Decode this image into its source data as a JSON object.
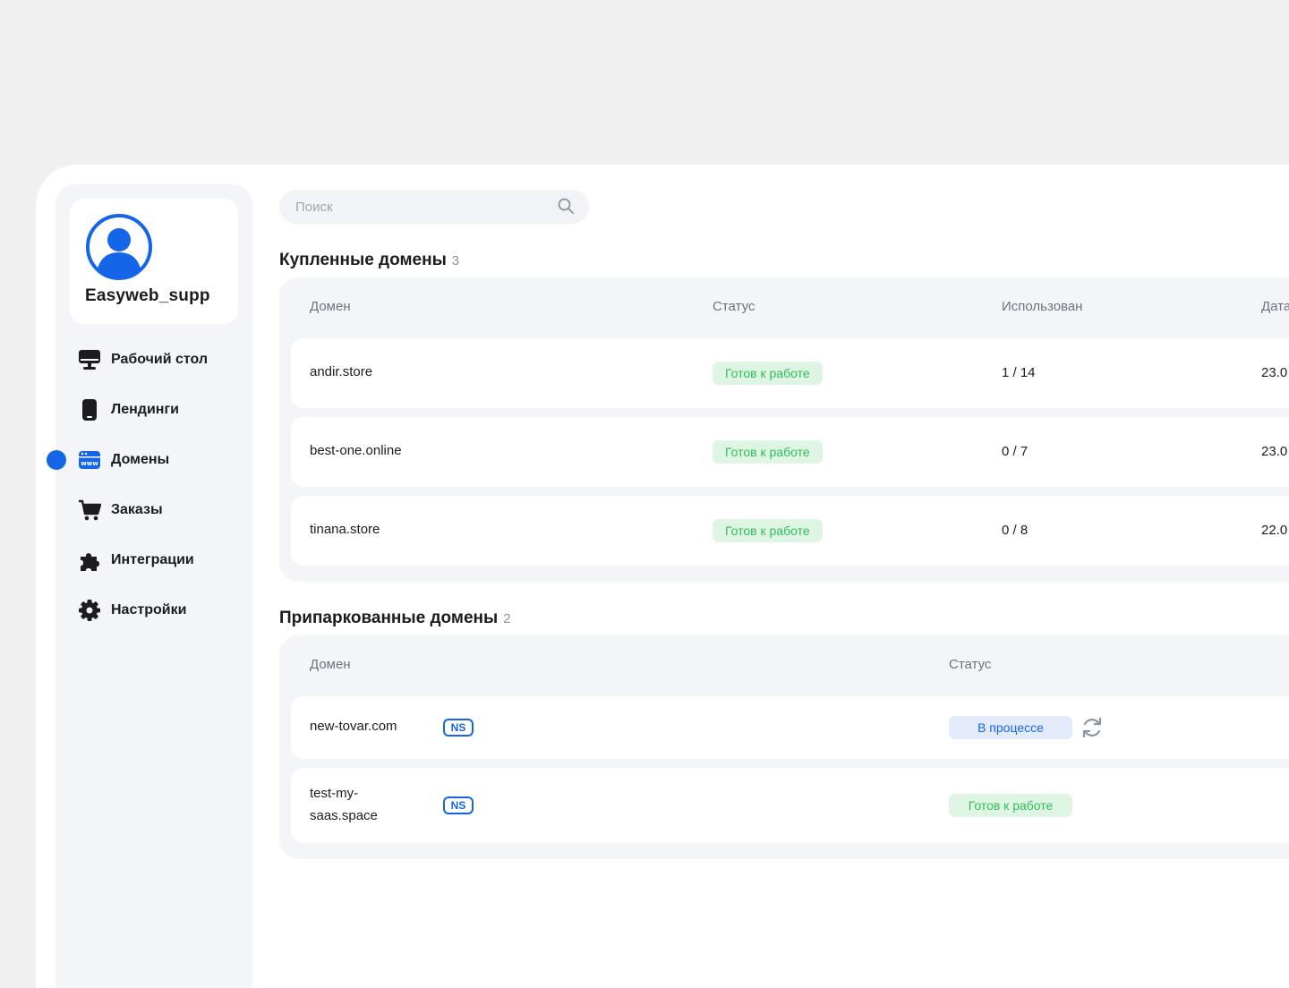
{
  "profile": {
    "username": "Easyweb_supp"
  },
  "nav": {
    "items": [
      {
        "label": "Рабочий стол",
        "icon": "monitor-icon"
      },
      {
        "label": "Лендинги",
        "icon": "phone-icon"
      },
      {
        "label": "Домены",
        "icon": "www-icon",
        "active": true
      },
      {
        "label": "Заказы",
        "icon": "cart-icon"
      },
      {
        "label": "Интеграции",
        "icon": "puzzle-icon"
      },
      {
        "label": "Настройки",
        "icon": "gear-icon"
      }
    ]
  },
  "search": {
    "placeholder": "Поиск"
  },
  "purchased": {
    "title": "Купленные домены",
    "count": "3",
    "columns": [
      "Домен",
      "Статус",
      "Использован",
      "Дата"
    ],
    "rows": [
      {
        "domain": "andir.store",
        "status": "Готов к работе",
        "used": "1 / 14",
        "date": "23.0"
      },
      {
        "domain": "best-one.online",
        "status": "Готов к работе",
        "used": "0 / 7",
        "date": "23.0"
      },
      {
        "domain": "tinana.store",
        "status": "Готов к работе",
        "used": "0 / 8",
        "date": "22.0"
      }
    ]
  },
  "parked": {
    "title": "Припаркованные домены",
    "count": "2",
    "columns": [
      "Домен",
      "Статус"
    ],
    "ns_label": "NS",
    "rows": [
      {
        "domain": "new-tovar.com",
        "status": "В процессе",
        "status_type": "process"
      },
      {
        "domain_line1": "test-my-",
        "domain_line2": "saas.space",
        "status": "Готов к работе",
        "status_type": "ready"
      }
    ]
  },
  "colors": {
    "accent": "#1565e8",
    "ready_bg": "#dff5e4",
    "ready_text": "#2fbf57",
    "process_bg": "#e3ebfb",
    "panel_bg": "#f3f5f8"
  }
}
